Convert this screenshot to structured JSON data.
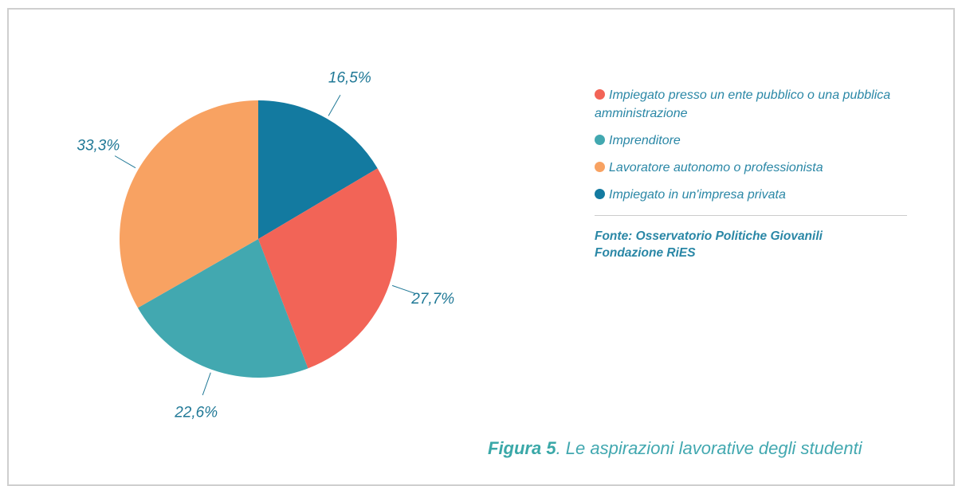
{
  "chart_data": {
    "type": "pie",
    "categories": [
      "Impiegato presso un ente pubblico o una pubblica amministrazione",
      "Imprenditore",
      "Lavoratore autonomo o professionista",
      "Impiegato in un'impresa privata"
    ],
    "values": [
      27.7,
      22.6,
      33.3,
      16.5
    ],
    "value_labels": [
      "27,7%",
      "22,6%",
      "33,3%",
      "16,5%"
    ],
    "colors": [
      "#f26457",
      "#42a8b0",
      "#f8a262",
      "#137aa0"
    ],
    "source": [
      "Fonte: Osservatorio Politiche Giovanili",
      "Fondazione RiES"
    ],
    "caption": {
      "number": "Figura 5",
      "text": ". Le aspirazioni lavorative degli studenti"
    }
  }
}
